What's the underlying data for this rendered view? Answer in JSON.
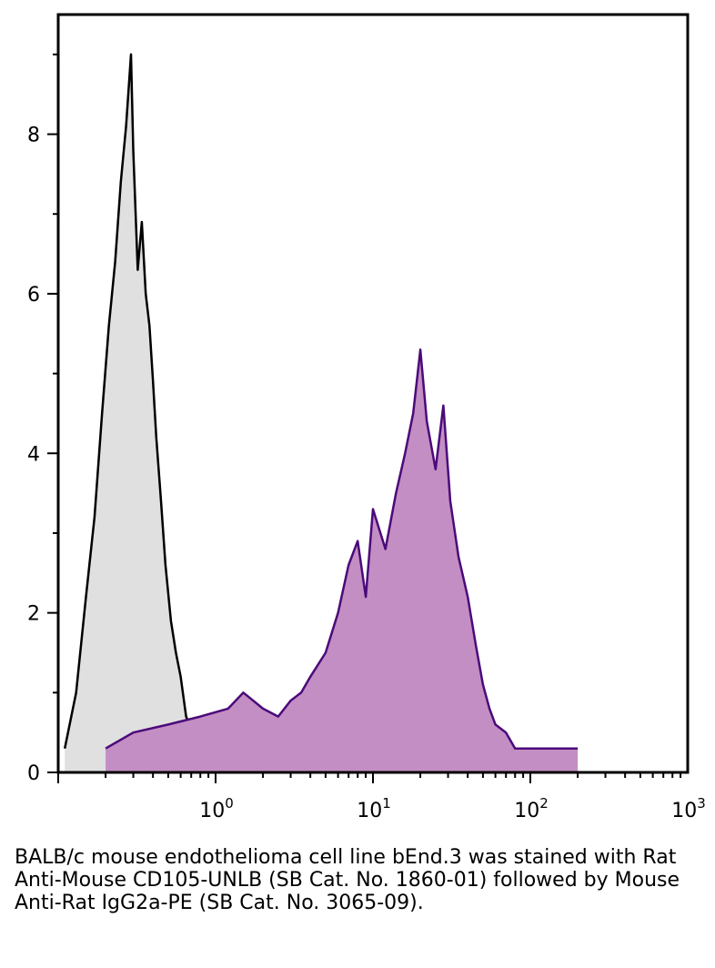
{
  "chart_data": {
    "type": "area",
    "x_scale": "log",
    "xlim": [
      0.1,
      1000
    ],
    "ylim": [
      0,
      9.5
    ],
    "x_ticks": [
      {
        "value": 1,
        "base": "10",
        "exp": "0"
      },
      {
        "value": 10,
        "base": "10",
        "exp": "1"
      },
      {
        "value": 100,
        "base": "10",
        "exp": "2"
      },
      {
        "value": 1000,
        "base": "10",
        "exp": "3"
      }
    ],
    "y_ticks": [
      0,
      2,
      4,
      6,
      8
    ],
    "grid": false,
    "series": [
      {
        "color": "#000000",
        "fill": "#e0e0e0",
        "x": [
          0.11,
          0.13,
          0.15,
          0.17,
          0.19,
          0.21,
          0.23,
          0.25,
          0.27,
          0.29,
          0.3,
          0.32,
          0.34,
          0.36,
          0.38,
          0.4,
          0.42,
          0.45,
          0.48,
          0.52,
          0.56,
          0.6,
          0.65,
          0.72,
          0.8,
          0.9
        ],
        "y": [
          0.3,
          1.0,
          2.2,
          3.2,
          4.5,
          5.6,
          6.4,
          7.4,
          8.1,
          9.0,
          7.8,
          6.3,
          6.9,
          6.0,
          5.6,
          4.9,
          4.2,
          3.4,
          2.6,
          1.9,
          1.5,
          1.2,
          0.7,
          0.5,
          0.3,
          0.1
        ]
      },
      {
        "color": "#4b0a7a",
        "fill": "#c38ec3",
        "x": [
          0.2,
          0.3,
          0.5,
          0.8,
          1.2,
          1.5,
          2.0,
          2.5,
          3.0,
          3.5,
          4.0,
          5.0,
          6.0,
          7.0,
          8.0,
          9.0,
          10,
          12,
          14,
          16,
          18,
          20,
          22,
          25,
          28,
          31,
          35,
          40,
          45,
          50,
          55,
          60,
          70,
          80,
          90,
          100,
          200
        ],
        "y": [
          0.3,
          0.5,
          0.6,
          0.7,
          0.8,
          1.0,
          0.8,
          0.7,
          0.9,
          1.0,
          1.2,
          1.5,
          2.0,
          2.6,
          2.9,
          2.2,
          3.3,
          2.8,
          3.5,
          4.0,
          4.5,
          5.3,
          4.4,
          3.8,
          4.6,
          3.4,
          2.7,
          2.2,
          1.6,
          1.1,
          0.8,
          0.6,
          0.5,
          0.3,
          0.3,
          0.3,
          0.3
        ]
      }
    ]
  },
  "caption": "BALB/c mouse endothelioma cell line bEnd.3 was stained with Rat Anti-Mouse CD105-UNLB (SB Cat. No. 1860-01) followed by Mouse Anti-Rat IgG2a-PE (SB Cat. No. 3065-09)."
}
